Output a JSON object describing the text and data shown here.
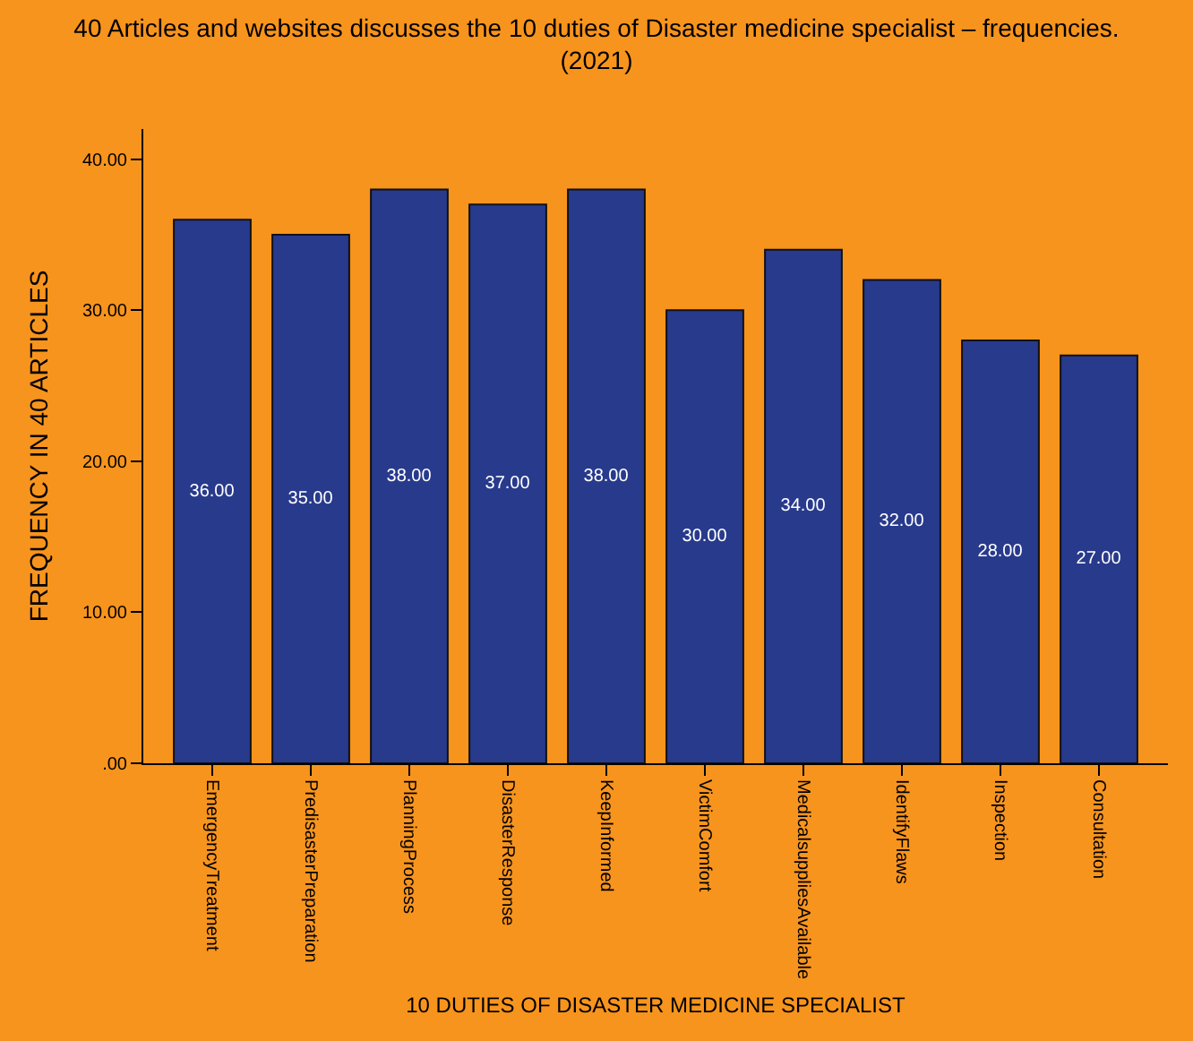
{
  "chart_data": {
    "type": "bar",
    "title": "40 Articles and websites discusses the 10 duties of Disaster medicine specialist – frequencies. (2021)",
    "xlabel": "10 DUTIES OF DISASTER MEDICINE SPECIALIST",
    "ylabel": "FREQUENCY IN 40 ARTICLES",
    "categories": [
      "EmergencyTreatment",
      "PredisasterPreparation",
      "PlanningProcess",
      "DisasterResponse",
      "KeepInformed",
      "VictimComfort",
      "MedicalsuppliesAvailable",
      "IdentifyFlaws",
      "Inspection",
      "Consultation"
    ],
    "values": [
      36,
      35,
      38,
      37,
      38,
      30,
      34,
      32,
      28,
      27
    ],
    "value_labels": [
      "36.00",
      "35.00",
      "38.00",
      "37.00",
      "38.00",
      "30.00",
      "34.00",
      "32.00",
      "28.00",
      "27.00"
    ],
    "color": "#283a8c",
    "ylim": [
      0,
      42
    ],
    "yticks": [
      {
        "value": 0,
        "label": ".00"
      },
      {
        "value": 10,
        "label": "10.00"
      },
      {
        "value": 20,
        "label": "20.00"
      },
      {
        "value": 30,
        "label": "30.00"
      },
      {
        "value": 40,
        "label": "40.00"
      }
    ],
    "grid": false,
    "legend": false
  }
}
